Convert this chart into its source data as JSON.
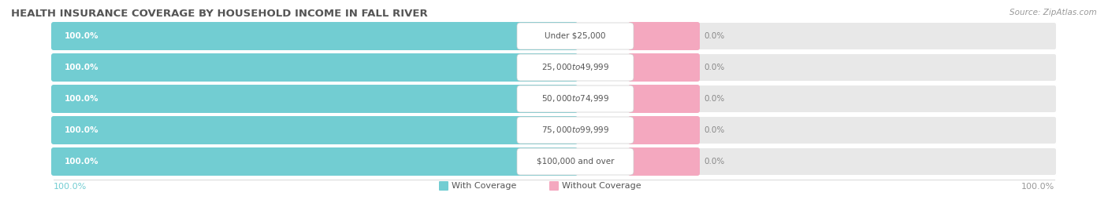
{
  "title": "HEALTH INSURANCE COVERAGE BY HOUSEHOLD INCOME IN FALL RIVER",
  "source": "Source: ZipAtlas.com",
  "categories": [
    "Under $25,000",
    "$25,000 to $49,999",
    "$50,000 to $74,999",
    "$75,000 to $99,999",
    "$100,000 and over"
  ],
  "with_coverage": [
    100.0,
    100.0,
    100.0,
    100.0,
    100.0
  ],
  "without_coverage": [
    0.0,
    0.0,
    0.0,
    0.0,
    0.0
  ],
  "color_with": "#72cdd2",
  "color_without": "#f4a8bf",
  "label_with": "With Coverage",
  "label_without": "Without Coverage",
  "bg_color": "#ffffff",
  "bar_bg_color": "#e8e8e8",
  "title_color": "#555555",
  "source_color": "#999999",
  "bottom_left_color": "#72cdd2",
  "bottom_right_color": "#999999",
  "title_fontsize": 9.5,
  "source_fontsize": 7.5,
  "bar_label_fontsize": 7.5,
  "category_fontsize": 7.5,
  "axis_label_fontsize": 8,
  "legend_fontsize": 8
}
